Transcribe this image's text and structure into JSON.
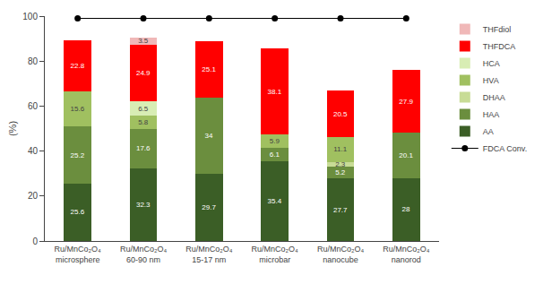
{
  "chart_data": {
    "type": "bar",
    "stacked": true,
    "ylabel": "(%)",
    "categories": [
      "Ru/MnCo₂O₄\nmicrosphere",
      "Ru/MnCo₂O₄\n60-90 nm",
      "Ru/MnCo₂O₄\n15-17 nm",
      "Ru/MnCo₂O₄\nmicrobar",
      "Ru/MnCo₂O₄\nnanocube",
      "Ru/MnCo₂O₄\nnanorod"
    ],
    "series": [
      {
        "name": "AA",
        "color": "#3b5e26",
        "values": [
          25.6,
          32.3,
          29.7,
          35.4,
          27.7,
          28.0
        ]
      },
      {
        "name": "HAA",
        "color": "#6b8e3e",
        "values": [
          25.2,
          17.6,
          34.0,
          6.1,
          5.2,
          20.1
        ]
      },
      {
        "name": "DHAA",
        "color": "#c8dc96",
        "values": [
          0.0,
          0.0,
          0.0,
          0.0,
          2.3,
          0.0
        ]
      },
      {
        "name": "HVA",
        "color": "#a0c060",
        "values": [
          15.6,
          5.8,
          0.0,
          5.9,
          11.1,
          0.0
        ]
      },
      {
        "name": "HCA",
        "color": "#d8edb4",
        "values": [
          0.0,
          6.5,
          0.0,
          0.0,
          0.0,
          0.0
        ]
      },
      {
        "name": "THFDCA",
        "color": "#ff0000",
        "values": [
          22.8,
          24.9,
          25.1,
          38.1,
          20.5,
          27.9
        ]
      },
      {
        "name": "THFdiol",
        "color": "#f0b8b8",
        "values": [
          0.0,
          3.5,
          0.0,
          0.0,
          0.0,
          0.0
        ]
      },
      {
        "name": "FDCA Conv.",
        "type": "line",
        "color": "black",
        "marker": "circle",
        "values": [
          99,
          99,
          99,
          99,
          99,
          99
        ]
      }
    ],
    "ylim": [
      0,
      100
    ],
    "yticks": [
      0,
      20,
      40,
      60,
      80,
      100
    ],
    "grid": false,
    "legend": "right",
    "data_labels": true
  }
}
